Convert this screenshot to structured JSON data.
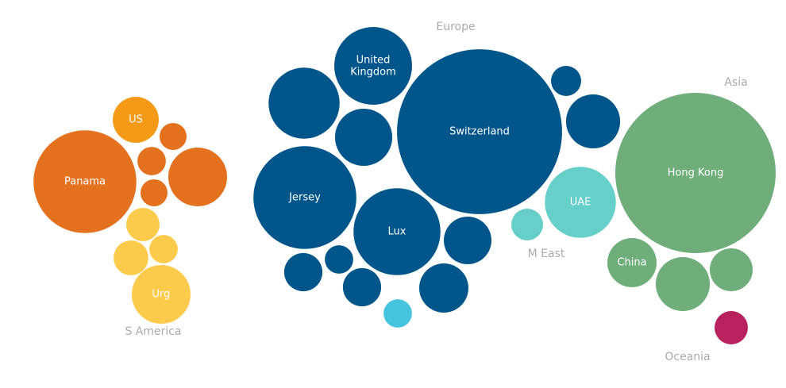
{
  "chart_data": {
    "type": "bubble",
    "groups": [
      {
        "name": "S America",
        "color": "#e4711d",
        "bubbles": [
          {
            "label": "Panama",
            "value": 42
          },
          {
            "label": "US",
            "value": 8.4,
            "color": "#f59a17"
          },
          {
            "value": 2.9
          },
          {
            "value": 3.2
          },
          {
            "value": 13.7
          },
          {
            "value": 2.9
          },
          {
            "value": 4.4,
            "color": "#fdcb4c"
          },
          {
            "value": 3.2,
            "color": "#fdcb4c"
          },
          {
            "value": 4.8,
            "color": "#fdcb4c"
          },
          {
            "label": "Urg",
            "value": 13.7,
            "color": "#fdcb4c"
          }
        ]
      },
      {
        "name": "Europe",
        "color": "#00558a",
        "bubbles": [
          {
            "value": 20
          },
          {
            "label": "United Kingdom",
            "value": 24
          },
          {
            "value": 13
          },
          {
            "label": "Switzerland",
            "value": 108
          },
          {
            "value": 3.6
          },
          {
            "value": 11.6
          },
          {
            "label": "Jersey",
            "value": 42
          },
          {
            "label": "Lux",
            "value": 30
          },
          {
            "value": 9
          },
          {
            "value": 5.8
          },
          {
            "value": 3.2
          },
          {
            "value": 5.8
          },
          {
            "value": 9.6
          },
          {
            "value": 3.2,
            "color": "#47c4dd"
          }
        ]
      },
      {
        "name": "M East",
        "color": "#66cfca",
        "bubbles": [
          {
            "label": "UAE",
            "value": 20
          },
          {
            "value": 4
          }
        ]
      },
      {
        "name": "Asia",
        "color": "#6fae7b",
        "bubbles": [
          {
            "label": "Hong Kong",
            "value": 102
          },
          {
            "label": "China",
            "value": 9.6
          },
          {
            "value": 11.6
          },
          {
            "value": 7.3
          }
        ]
      },
      {
        "name": "Oceania",
        "color": "#b8205e",
        "bubbles": [
          {
            "value": 4.4
          }
        ]
      }
    ]
  }
}
